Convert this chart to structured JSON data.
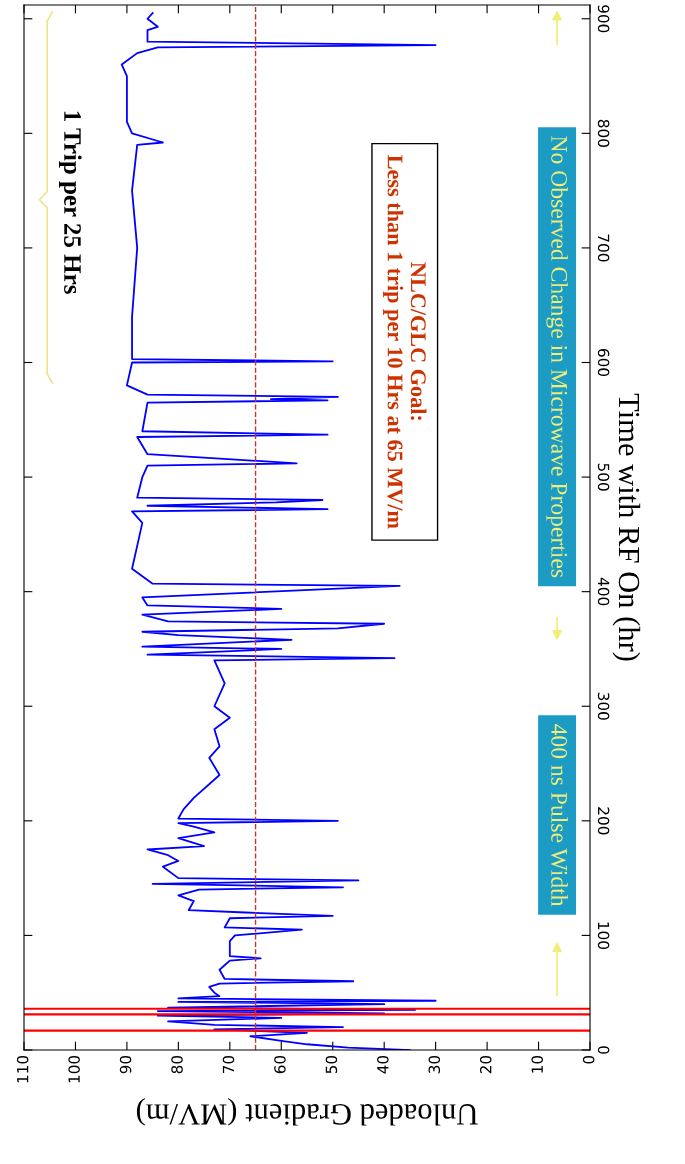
{
  "chart_data": {
    "type": "line",
    "xlabel": "Unloaded Gradient (MV/m)",
    "ylabel": "Time with RF On (hr)",
    "xlim": [
      110,
      0
    ],
    "xticks": [
      0,
      10,
      20,
      30,
      40,
      50,
      60,
      70,
      80,
      90,
      100,
      110
    ],
    "ylim": [
      0,
      912
    ],
    "yticks": [
      0,
      100,
      200,
      300,
      400,
      500,
      600,
      700,
      800,
      900
    ],
    "grid": false,
    "legend": false,
    "series": [
      {
        "color": "#0000ff",
        "x": [
          35,
          47,
          55,
          60,
          66,
          55,
          73,
          48,
          73,
          82,
          60,
          84,
          40,
          84,
          34,
          82,
          40,
          80,
          30,
          80,
          72,
          73,
          74,
          72,
          46,
          71,
          72,
          70,
          64,
          70,
          70,
          69,
          56,
          71,
          70,
          50,
          67,
          78,
          77,
          80,
          76,
          48,
          85,
          45,
          80,
          83,
          80,
          82,
          86,
          75,
          80,
          73,
          77,
          80,
          49,
          80,
          79,
          77,
          72,
          74,
          72,
          73,
          70,
          73,
          71,
          72,
          73,
          38,
          86,
          60,
          87,
          58,
          80,
          87,
          49,
          40,
          82,
          87,
          60,
          86,
          87,
          37,
          85,
          89,
          88,
          87,
          89,
          51,
          86,
          61,
          52,
          88,
          87,
          86,
          57,
          86,
          88,
          51,
          87,
          86,
          51,
          62,
          49,
          86,
          90,
          89,
          50,
          89,
          89,
          88,
          89,
          88,
          83,
          89,
          90,
          90,
          90,
          91,
          88,
          84,
          30,
          86,
          86,
          84,
          86,
          85
        ],
        "values": [
          0,
          2,
          5,
          8,
          12,
          15,
          18,
          20,
          22,
          25,
          28,
          30,
          32,
          34,
          35,
          37,
          40,
          42,
          43,
          45,
          47,
          50,
          55,
          58,
          60,
          62,
          70,
          78,
          80,
          82,
          95,
          100,
          105,
          107,
          115,
          117,
          120,
          122,
          130,
          135,
          140,
          142,
          145,
          148,
          150,
          160,
          165,
          170,
          175,
          178,
          185,
          190,
          195,
          198,
          200,
          202,
          210,
          220,
          240,
          255,
          265,
          280,
          290,
          300,
          320,
          330,
          340,
          342,
          345,
          350,
          352,
          358,
          362,
          365,
          368,
          372,
          374,
          380,
          385,
          388,
          395,
          405,
          407,
          420,
          440,
          460,
          470,
          472,
          475,
          478,
          480,
          482,
          500,
          510,
          512,
          520,
          535,
          537,
          540,
          565,
          567,
          568,
          570,
          572,
          580,
          600,
          601,
          603,
          640,
          700,
          750,
          790,
          792,
          800,
          810,
          830,
          850,
          860,
          870,
          875,
          877,
          880,
          890,
          893,
          900,
          905
        ]
      }
    ],
    "ref_lines": [
      {
        "axis": "x",
        "value": 65,
        "color": "#c0392b",
        "line_style": "dashed"
      },
      {
        "axis": "y",
        "value": 17,
        "color": "#ff0000",
        "line_style": "solid"
      },
      {
        "axis": "y",
        "value": 31,
        "color": "#ff0000",
        "line_style": "solid"
      },
      {
        "axis": "y",
        "value": 36,
        "color": "#ff0000",
        "line_style": "solid"
      }
    ],
    "annotations": [
      "400 ns Pulse Width",
      "No Observed Change in Microwave Properties",
      "1 Trip per 25 Hrs",
      "NLC/GLC Goal:\nLess than 1 trip per 10 Hrs at 65 MV/m"
    ]
  }
}
